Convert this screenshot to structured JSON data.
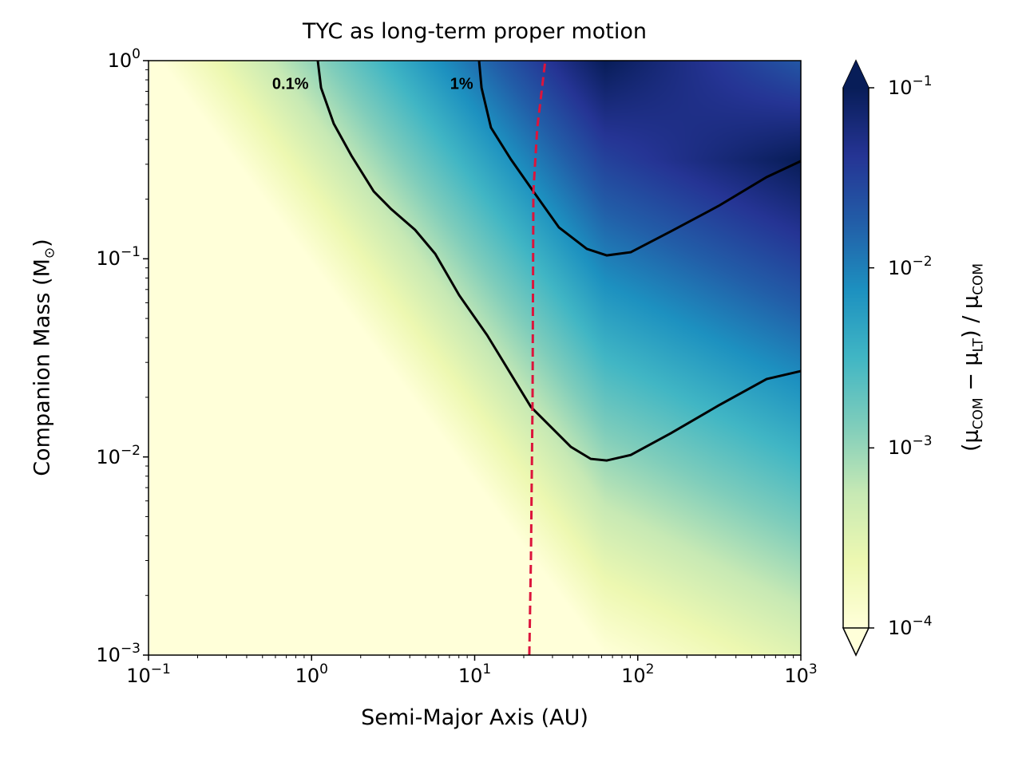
{
  "chart_data": {
    "type": "heatmap",
    "title": "TYC as long-term proper motion",
    "xlabel": "Semi-Major Axis (AU)",
    "ylabel_main": "Companion Mass (M",
    "ylabel_sym": "⊙",
    "ylabel_end": ")",
    "xscale": "log",
    "yscale": "log",
    "xlim": [
      0.1,
      1000
    ],
    "ylim": [
      0.001,
      1
    ],
    "xticks": [
      {
        "base": "10",
        "exp": "−1",
        "value": 0.1
      },
      {
        "base": "10",
        "exp": "0",
        "value": 1
      },
      {
        "base": "10",
        "exp": "1",
        "value": 10
      },
      {
        "base": "10",
        "exp": "2",
        "value": 100
      },
      {
        "base": "10",
        "exp": "3",
        "value": 1000
      }
    ],
    "yticks": [
      {
        "base": "10",
        "exp": "−3",
        "value": 0.001
      },
      {
        "base": "10",
        "exp": "−2",
        "value": 0.01
      },
      {
        "base": "10",
        "exp": "−1",
        "value": 0.1
      },
      {
        "base": "10",
        "exp": "0",
        "value": 1
      }
    ],
    "colorbar": {
      "label_open": "(μ",
      "label_sub1": "COM",
      "label_mid": " − μ",
      "label_sub2": "LT",
      "label_close": ") / μ",
      "label_sub3": "COM",
      "scale": "log",
      "range": [
        0.0001,
        0.1
      ],
      "extend": "both",
      "colormap": [
        "#ffffd9",
        "#edf8b1",
        "#c7e9b4",
        "#7fcdbb",
        "#41b6c4",
        "#1d91c0",
        "#225ea8",
        "#253494",
        "#081d58"
      ],
      "ticks": [
        {
          "base": "10",
          "exp": "−1",
          "value": 0.1
        },
        {
          "base": "10",
          "exp": "−2",
          "value": 0.01
        },
        {
          "base": "10",
          "exp": "−3",
          "value": 0.001
        },
        {
          "base": "10",
          "exp": "−4",
          "value": 0.0001
        }
      ]
    },
    "contours": [
      {
        "label": "0.1%",
        "level": 0.001,
        "log10_a": [
          0.038,
          0.058,
          0.136,
          0.244,
          0.381,
          0.488,
          0.635,
          0.758,
          0.905,
          1.076,
          1.345,
          1.59,
          1.712,
          1.81,
          1.957,
          2.202,
          2.496,
          2.79,
          3.0
        ],
        "log10_M": [
          0,
          -0.137,
          -0.318,
          -0.479,
          -0.66,
          -0.749,
          -0.854,
          -0.975,
          -1.184,
          -1.385,
          -1.748,
          -1.949,
          -2.01,
          -2.018,
          -1.99,
          -1.881,
          -1.74,
          -1.607,
          -1.567
        ],
        "label_pos": [
          -0.13,
          -0.12
        ]
      },
      {
        "label": "1%",
        "level": 0.01,
        "log10_a": [
          1.027,
          1.042,
          1.1,
          1.223,
          1.36,
          1.517,
          1.688,
          1.81,
          1.957,
          2.202,
          2.496,
          2.79,
          3.0
        ],
        "log10_M": [
          0,
          -0.137,
          -0.338,
          -0.499,
          -0.66,
          -0.842,
          -0.95,
          -0.983,
          -0.967,
          -0.862,
          -0.733,
          -0.588,
          -0.507
        ],
        "label_pos": [
          0.92,
          -0.12
        ]
      }
    ],
    "dashed_line": {
      "color": "#dc143c",
      "log10_a": [
        1.335,
        1.345,
        1.355,
        1.36,
        1.384,
        1.433
      ],
      "log10_M": [
        -3,
        -2.513,
        -1.708,
        -0.66,
        -0.338,
        0
      ]
    }
  }
}
